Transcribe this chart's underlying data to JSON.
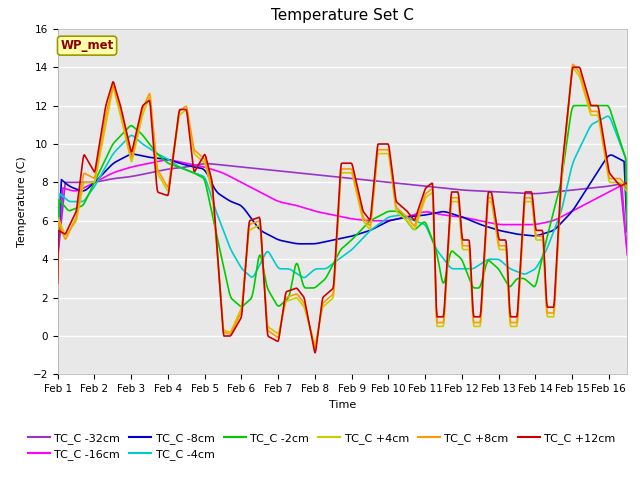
{
  "title": "Temperature Set C",
  "xlabel": "Time",
  "ylabel": "Temperature (C)",
  "ylim": [
    -2,
    16
  ],
  "yticks": [
    -2,
    0,
    2,
    4,
    6,
    8,
    10,
    12,
    14,
    16
  ],
  "x_labels": [
    "Feb 1",
    "Feb 2",
    "Feb 3",
    "Feb 4",
    "Feb 5",
    "Feb 6",
    "Feb 7",
    "Feb 8",
    "Feb 9",
    "Feb 10",
    "Feb 11",
    "Feb 12",
    "Feb 13",
    "Feb 14",
    "Feb 15",
    "Feb 16"
  ],
  "wp_met_label": "WP_met",
  "series_colors": {
    "TC_C -32cm": "#9933cc",
    "TC_C -16cm": "#ff00ff",
    "TC_C -8cm": "#0000cc",
    "TC_C -4cm": "#00cccc",
    "TC_C -2cm": "#00cc00",
    "TC_C +4cm": "#cccc00",
    "TC_C +8cm": "#ff9900",
    "TC_C +12cm": "#cc0000"
  },
  "plot_bg_color": "#e8e8e8",
  "fig_bg_color": "#ffffff",
  "grid_color": "#ffffff",
  "legend_fontsize": 8,
  "title_fontsize": 11,
  "tick_fontsize": 7.5
}
